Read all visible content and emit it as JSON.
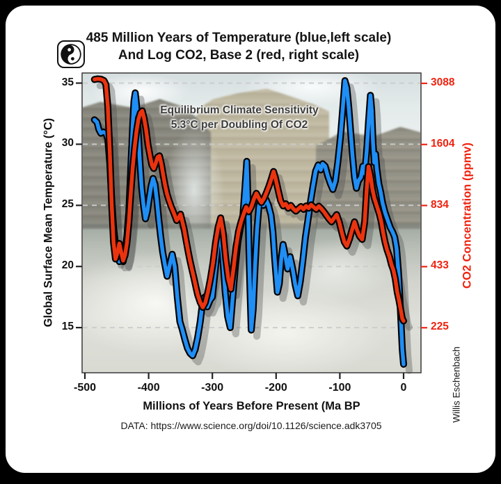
{
  "header": {
    "title_line1": "485 Million Years of Temperature (blue,left scale)",
    "title_line2": "And Log CO2, Base 2 (red, right scale)"
  },
  "logo": {
    "name": "yin-yang logo"
  },
  "annotation": {
    "line1": "Equilibrium Climate Sensitivity",
    "line2": "5.3°C per Doubling Of CO2"
  },
  "watermark": {
    "author": "Willis Eschenbach"
  },
  "footer": {
    "source": "DATA: https://www.science.org/doi/10.1126/science.adk3705"
  },
  "colors": {
    "temperature_line": "#1f8ef5",
    "co2_line": "#ea340f",
    "co2_text": "#f02310",
    "grid": "#cccccc",
    "tick": "#222222",
    "outline": "#000000",
    "shadow": "#474747"
  },
  "chart_data": {
    "type": "line",
    "title": "485 Million Years of Temperature And Log CO2, Base 2",
    "x_axis": {
      "label": "Millions of Years Before Present (Ma BP",
      "ticks": [
        -500,
        -400,
        -300,
        -200,
        -100,
        0
      ],
      "range": [
        -505,
        25
      ],
      "units": "Ma"
    },
    "y_left": {
      "label": "Global Surface Mean Temperature (°C)",
      "ticks": [
        35,
        30,
        25,
        20,
        15
      ],
      "range": [
        11,
        36
      ],
      "scale": "linear"
    },
    "y_right": {
      "label": "CO2 Concentration (ppmv)",
      "ticks": [
        3088,
        1604,
        834,
        433,
        225
      ],
      "scale": "log2",
      "aligned_with_left": "each CO2 doubling spans 5.3°C on left axis"
    },
    "gridlines": {
      "style": "dashed",
      "at_left_values": [
        35,
        30,
        25,
        20,
        15
      ]
    },
    "legend": {
      "blue": "Temperature (left scale)",
      "red": "Log CO2 Base 2 (right scale)"
    },
    "series": [
      {
        "name": "Global Surface Mean Temperature",
        "axis": "left",
        "units": "°C",
        "points": [
          [
            -485,
            32.0
          ],
          [
            -481,
            31.8
          ],
          [
            -478,
            31.2
          ],
          [
            -475,
            30.9
          ],
          [
            -471,
            31.0
          ],
          [
            -467,
            30.9
          ],
          [
            -464,
            30.4
          ],
          [
            -461,
            28.5
          ],
          [
            -458,
            25.5
          ],
          [
            -455,
            23.2
          ],
          [
            -452,
            21.8
          ],
          [
            -449,
            21.0
          ],
          [
            -446,
            20.4
          ],
          [
            -443,
            20.9
          ],
          [
            -440,
            20.4
          ],
          [
            -437,
            21.2
          ],
          [
            -434,
            22.5
          ],
          [
            -431,
            24.5
          ],
          [
            -428,
            28.0
          ],
          [
            -425,
            31.5
          ],
          [
            -423,
            33.5
          ],
          [
            -421,
            34.2
          ],
          [
            -419,
            33.2
          ],
          [
            -417,
            31.5
          ],
          [
            -414,
            28.8
          ],
          [
            -411,
            26.5
          ],
          [
            -408,
            25.0
          ],
          [
            -405,
            23.9
          ],
          [
            -402,
            24.5
          ],
          [
            -399,
            25.6
          ],
          [
            -396,
            26.6
          ],
          [
            -393,
            27.2
          ],
          [
            -390,
            26.7
          ],
          [
            -387,
            25.4
          ],
          [
            -384,
            23.8
          ],
          [
            -381,
            22.4
          ],
          [
            -378,
            21.2
          ],
          [
            -374,
            20.0
          ],
          [
            -371,
            19.2
          ],
          [
            -367,
            20.1
          ],
          [
            -363,
            21.0
          ],
          [
            -359,
            20.0
          ],
          [
            -355,
            17.5
          ],
          [
            -351,
            15.5
          ],
          [
            -347,
            14.8
          ],
          [
            -343,
            14.0
          ],
          [
            -339,
            13.3
          ],
          [
            -335,
            12.9
          ],
          [
            -331,
            12.7
          ],
          [
            -327,
            13.2
          ],
          [
            -323,
            14.2
          ],
          [
            -319,
            15.5
          ],
          [
            -316,
            16.8
          ],
          [
            -312,
            17.5
          ],
          [
            -308,
            16.7
          ],
          [
            -304,
            17.2
          ],
          [
            -300,
            17.5
          ],
          [
            -296,
            19.5
          ],
          [
            -292,
            21.5
          ],
          [
            -288,
            23.0
          ],
          [
            -284,
            21.0
          ],
          [
            -280,
            18.0
          ],
          [
            -276,
            15.9
          ],
          [
            -272,
            15.0
          ],
          [
            -268,
            17.5
          ],
          [
            -264,
            20.0
          ],
          [
            -260,
            22.0
          ],
          [
            -256,
            23.2
          ],
          [
            -252,
            24.2
          ],
          [
            -249,
            26.3
          ],
          [
            -246,
            28.6
          ],
          [
            -244,
            25.0
          ],
          [
            -242,
            20.0
          ],
          [
            -239,
            14.8
          ],
          [
            -236,
            16.5
          ],
          [
            -233,
            20.0
          ],
          [
            -230,
            23.0
          ],
          [
            -227,
            24.9
          ],
          [
            -224,
            25.4
          ],
          [
            -220,
            25.0
          ],
          [
            -216,
            25.5
          ],
          [
            -212,
            25.0
          ],
          [
            -208,
            24.2
          ],
          [
            -205,
            22.8
          ],
          [
            -202,
            20.5
          ],
          [
            -198,
            17.9
          ],
          [
            -195,
            18.6
          ],
          [
            -192,
            20.6
          ],
          [
            -189,
            21.8
          ],
          [
            -186,
            21.0
          ],
          [
            -182,
            19.8
          ],
          [
            -178,
            20.8
          ],
          [
            -174,
            19.8
          ],
          [
            -170,
            18.5
          ],
          [
            -166,
            17.6
          ],
          [
            -162,
            18.8
          ],
          [
            -158,
            20.5
          ],
          [
            -154,
            22.4
          ],
          [
            -150,
            23.8
          ],
          [
            -146,
            25.3
          ],
          [
            -142,
            26.6
          ],
          [
            -138,
            27.8
          ],
          [
            -134,
            28.3
          ],
          [
            -130,
            27.9
          ],
          [
            -127,
            28.4
          ],
          [
            -123,
            28.2
          ],
          [
            -119,
            27.4
          ],
          [
            -115,
            26.8
          ],
          [
            -111,
            26.3
          ],
          [
            -107,
            27.0
          ],
          [
            -103,
            28.6
          ],
          [
            -99,
            30.6
          ],
          [
            -95,
            33.2
          ],
          [
            -92,
            35.2
          ],
          [
            -89,
            34.6
          ],
          [
            -86,
            33.0
          ],
          [
            -83,
            31.0
          ],
          [
            -80,
            29.0
          ],
          [
            -77,
            27.3
          ],
          [
            -74,
            26.4
          ],
          [
            -71,
            27.0
          ],
          [
            -67,
            27.3
          ],
          [
            -64,
            28.2
          ],
          [
            -61,
            27.6
          ],
          [
            -58,
            29.4
          ],
          [
            -55,
            31.8
          ],
          [
            -52,
            34.0
          ],
          [
            -50,
            32.8
          ],
          [
            -48,
            30.2
          ],
          [
            -46,
            28.5
          ],
          [
            -44,
            29.2
          ],
          [
            -42,
            28.0
          ],
          [
            -39,
            26.8
          ],
          [
            -36,
            26.1
          ],
          [
            -33,
            25.2
          ],
          [
            -29,
            24.4
          ],
          [
            -25,
            23.8
          ],
          [
            -21,
            23.2
          ],
          [
            -17,
            22.8
          ],
          [
            -14,
            22.4
          ],
          [
            -11,
            21.5
          ],
          [
            -8,
            19.5
          ],
          [
            -5,
            16.5
          ],
          [
            -2,
            13.2
          ],
          [
            0,
            12.0
          ]
        ]
      },
      {
        "name": "CO2 Concentration",
        "axis": "right",
        "units": "ppmv",
        "points": [
          [
            -485,
            3220
          ],
          [
            -480,
            3240
          ],
          [
            -475,
            3230
          ],
          [
            -470,
            3180
          ],
          [
            -467,
            3050
          ],
          [
            -464,
            2400
          ],
          [
            -461,
            1500
          ],
          [
            -458,
            850
          ],
          [
            -455,
            560
          ],
          [
            -452,
            470
          ],
          [
            -449,
            500
          ],
          [
            -446,
            555
          ],
          [
            -443,
            505
          ],
          [
            -440,
            462
          ],
          [
            -437,
            490
          ],
          [
            -434,
            560
          ],
          [
            -431,
            700
          ],
          [
            -428,
            950
          ],
          [
            -425,
            1250
          ],
          [
            -422,
            1550
          ],
          [
            -419,
            1850
          ],
          [
            -416,
            2100
          ],
          [
            -413,
            2250
          ],
          [
            -410,
            2300
          ],
          [
            -407,
            2120
          ],
          [
            -404,
            1880
          ],
          [
            -401,
            1600
          ],
          [
            -398,
            1430
          ],
          [
            -395,
            1290
          ],
          [
            -392,
            1240
          ],
          [
            -389,
            1310
          ],
          [
            -386,
            1400
          ],
          [
            -383,
            1420
          ],
          [
            -380,
            1300
          ],
          [
            -377,
            1150
          ],
          [
            -374,
            1030
          ],
          [
            -371,
            940
          ],
          [
            -368,
            880
          ],
          [
            -365,
            830
          ],
          [
            -362,
            790
          ],
          [
            -359,
            750
          ],
          [
            -356,
            710
          ],
          [
            -353,
            730
          ],
          [
            -350,
            760
          ],
          [
            -347,
            700
          ],
          [
            -344,
            640
          ],
          [
            -341,
            570
          ],
          [
            -338,
            510
          ],
          [
            -335,
            460
          ],
          [
            -332,
            420
          ],
          [
            -329,
            385
          ],
          [
            -326,
            350
          ],
          [
            -323,
            320
          ],
          [
            -319,
            295
          ],
          [
            -315,
            280
          ],
          [
            -311,
            295
          ],
          [
            -307,
            330
          ],
          [
            -303,
            380
          ],
          [
            -299,
            450
          ],
          [
            -295,
            560
          ],
          [
            -291,
            660
          ],
          [
            -287,
            730
          ],
          [
            -283,
            620
          ],
          [
            -279,
            470
          ],
          [
            -275,
            380
          ],
          [
            -271,
            340
          ],
          [
            -267,
            420
          ],
          [
            -263,
            530
          ],
          [
            -259,
            630
          ],
          [
            -255,
            700
          ],
          [
            -251,
            760
          ],
          [
            -247,
            820
          ],
          [
            -243,
            780
          ],
          [
            -239,
            820
          ],
          [
            -235,
            890
          ],
          [
            -231,
            950
          ],
          [
            -227,
            900
          ],
          [
            -223,
            860
          ],
          [
            -219,
            900
          ],
          [
            -215,
            960
          ],
          [
            -211,
            1030
          ],
          [
            -207,
            1120
          ],
          [
            -204,
            1200
          ],
          [
            -201,
            1120
          ],
          [
            -197,
            990
          ],
          [
            -193,
            880
          ],
          [
            -189,
            830
          ],
          [
            -185,
            850
          ],
          [
            -181,
            810
          ],
          [
            -177,
            835
          ],
          [
            -173,
            805
          ],
          [
            -169,
            785
          ],
          [
            -165,
            805
          ],
          [
            -161,
            825
          ],
          [
            -157,
            800
          ],
          [
            -153,
            830
          ],
          [
            -149,
            810
          ],
          [
            -145,
            840
          ],
          [
            -141,
            820
          ],
          [
            -137,
            800
          ],
          [
            -133,
            828
          ],
          [
            -129,
            806
          ],
          [
            -125,
            780
          ],
          [
            -121,
            750
          ],
          [
            -117,
            722
          ],
          [
            -113,
            700
          ],
          [
            -109,
            728
          ],
          [
            -105,
            756
          ],
          [
            -101,
            700
          ],
          [
            -97,
            625
          ],
          [
            -93,
            565
          ],
          [
            -89,
            540
          ],
          [
            -85,
            580
          ],
          [
            -81,
            640
          ],
          [
            -77,
            700
          ],
          [
            -73,
            640
          ],
          [
            -69,
            600
          ],
          [
            -65,
            580
          ],
          [
            -61,
            700
          ],
          [
            -58,
            980
          ],
          [
            -55,
            1265
          ],
          [
            -52,
            1150
          ],
          [
            -49,
            1000
          ],
          [
            -46,
            905
          ],
          [
            -42,
            830
          ],
          [
            -38,
            762
          ],
          [
            -35,
            700
          ],
          [
            -32,
            622
          ],
          [
            -29,
            562
          ],
          [
            -26,
            520
          ],
          [
            -22,
            480
          ],
          [
            -19,
            442
          ],
          [
            -16,
            418
          ],
          [
            -13,
            380
          ],
          [
            -10,
            330
          ],
          [
            -7,
            300
          ],
          [
            -4,
            268
          ],
          [
            -2,
            248
          ],
          [
            0,
            242
          ]
        ]
      }
    ]
  }
}
